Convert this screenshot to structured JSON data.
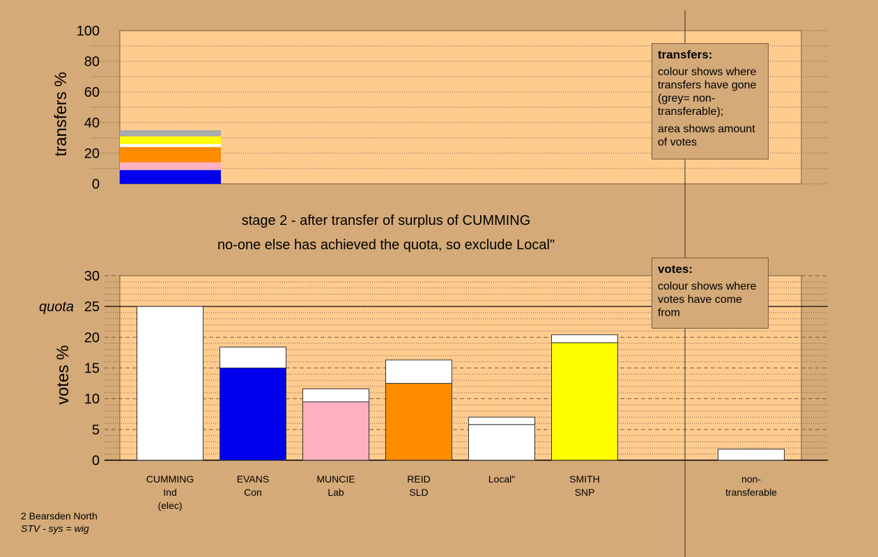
{
  "chart_data": [
    {
      "type": "bar",
      "name": "transfers",
      "ylabel": "transfers %",
      "ylim": [
        0,
        100
      ],
      "yticks": [
        0,
        20,
        40,
        60,
        80,
        100
      ],
      "grid": true,
      "stacked_bar": {
        "segments": [
          {
            "value": 9.0,
            "color": "#0000ee"
          },
          {
            "value": 5.0,
            "color": "#ffb0c0"
          },
          {
            "value": 10.0,
            "color": "#ff8c00"
          },
          {
            "value": 2.0,
            "color": "#ffffff"
          },
          {
            "value": 5.0,
            "color": "#ffff00"
          },
          {
            "value": 4.0,
            "color": "#aaaaaa"
          }
        ]
      }
    },
    {
      "type": "bar",
      "name": "votes",
      "ylabel": "votes %",
      "ylim": [
        0,
        30
      ],
      "yticks": [
        0,
        5,
        10,
        15,
        20,
        25,
        30
      ],
      "quota": 25,
      "quota_label": "quota",
      "grid": true,
      "categories": [
        {
          "line1": "CUMMING",
          "line2": "Ind",
          "line3": "(elec)"
        },
        {
          "line1": "EVANS",
          "line2": "Con",
          "line3": ""
        },
        {
          "line1": "MUNCIE",
          "line2": "Lab",
          "line3": ""
        },
        {
          "line1": "REID",
          "line2": "SLD",
          "line3": ""
        },
        {
          "line1": "Local\"",
          "line2": "",
          "line3": ""
        },
        {
          "line1": "SMITH",
          "line2": "SNP",
          "line3": ""
        },
        {
          "line1": "non-",
          "line2": "transferable",
          "line3": ""
        }
      ],
      "bars": [
        {
          "base": 0,
          "base_color": "#ffffff",
          "total": 25.0
        },
        {
          "base": 15.0,
          "base_color": "#0000ee",
          "total": 18.4
        },
        {
          "base": 9.5,
          "base_color": "#ffb0c0",
          "total": 11.6
        },
        {
          "base": 12.5,
          "base_color": "#ff8c00",
          "total": 16.3
        },
        {
          "base": 5.8,
          "base_color": "#ffffff",
          "total": 7.0
        },
        {
          "base": 19.1,
          "base_color": "#ffff00",
          "total": 20.4
        },
        {
          "base": 0,
          "base_color": "#ffffff",
          "total": 1.8
        }
      ]
    }
  ],
  "colors": {
    "background": "#d4aa78",
    "plot_area": "#ffcc90",
    "gridline": "#7a5a3a"
  },
  "legend_transfers": {
    "title": "transfers:",
    "para1": "colour shows where transfers have gone (grey= non-transferable);",
    "para2": "area shows amount of votes"
  },
  "legend_votes": {
    "title": "votes:",
    "para1": "colour shows where votes have come from"
  },
  "caption": {
    "line1": "stage 2 - after transfer of surplus of CUMMING",
    "line2": "no-one else has achieved the quota, so exclude Local\""
  },
  "footer": {
    "line1": "2 Bearsden North",
    "line2": "STV - sys = wig"
  }
}
